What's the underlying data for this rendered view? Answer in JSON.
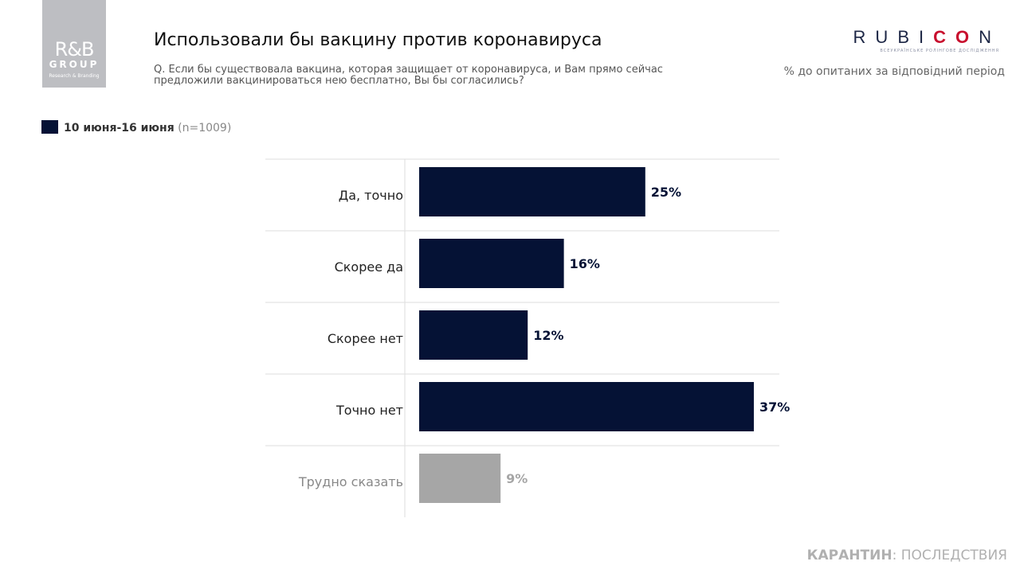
{
  "logo": {
    "line1": "R&B",
    "line2": "GROUP",
    "line3": "Research & Branding"
  },
  "header": {
    "title": "Использовали бы вакцину против коронавируса",
    "question": "Q. Если бы существовала вакцина, которая защищает от коронавируса, и Вам прямо сейчас предложили вакцинироваться нею бесплатно, Вы бы согласились?",
    "brand_main": "RUBI",
    "brand_red": "CO",
    "brand_end": "N",
    "brand_sub": "ВСЕУКРАЇНСЬКЕ РОЛІНГОВЕ ДОСЛІДЖЕННЯ",
    "unit_note": "% до опитаних за відповідний період"
  },
  "footer": {
    "bold": "КАРАНТИН",
    "rest": ": ПОСЛЕДСТВИЯ"
  },
  "chart_data": {
    "type": "bar",
    "orientation": "horizontal",
    "legend": {
      "label": "10 июня-16 июня",
      "note": "(n=1009)",
      "position": "top-left"
    },
    "categories": [
      "Да, точно",
      "Скорее да",
      "Скорее нет",
      "Точно нет",
      "Трудно сказать"
    ],
    "series": [
      {
        "name": "10 июня-16 июня",
        "values": [
          25,
          16,
          12,
          37,
          9
        ]
      }
    ],
    "data_labels": [
      "25%",
      "16%",
      "12%",
      "37%",
      "9%"
    ],
    "colors": [
      "#051235",
      "#051235",
      "#051235",
      "#051235",
      "#a6a6a6"
    ],
    "xlim": [
      0,
      37
    ],
    "grid": false
  }
}
